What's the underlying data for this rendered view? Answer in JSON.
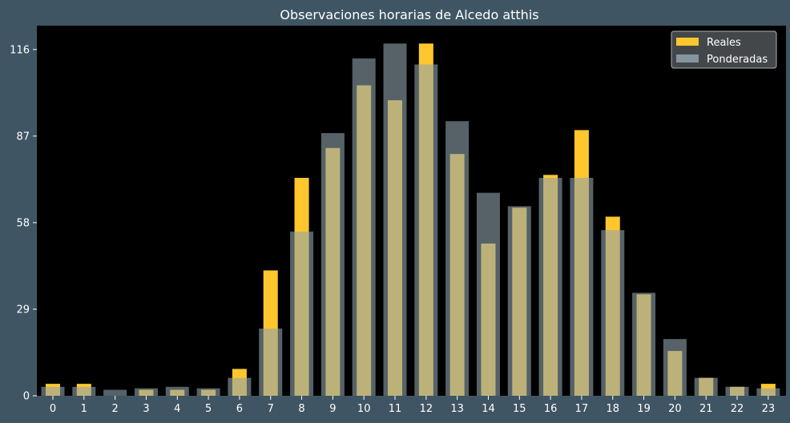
{
  "chart_data": {
    "type": "bar",
    "title": "Observaciones horarias de Alcedo atthis",
    "xlabel": "",
    "ylabel": "",
    "categories": [
      "0",
      "1",
      "2",
      "3",
      "4",
      "5",
      "6",
      "7",
      "8",
      "9",
      "10",
      "11",
      "12",
      "13",
      "14",
      "15",
      "16",
      "17",
      "18",
      "19",
      "20",
      "21",
      "22",
      "23"
    ],
    "yticks": [
      0,
      29,
      58,
      87,
      116
    ],
    "ylim": [
      0,
      124
    ],
    "grid": false,
    "legend_position": "top-right",
    "series": [
      {
        "name": "Reales",
        "color": "#ffc72c",
        "values": [
          4,
          4,
          0,
          2,
          2,
          2,
          9,
          42,
          73,
          83,
          104,
          99,
          118,
          81,
          51,
          63,
          74,
          89,
          60,
          34,
          15,
          6,
          3,
          4
        ]
      },
      {
        "name": "Ponderadas",
        "color": "#8fa3ad",
        "values": [
          3,
          3,
          2,
          2.5,
          3,
          2.5,
          6,
          22.5,
          55,
          88,
          113,
          118,
          111,
          92,
          68,
          63.5,
          73,
          73,
          55.5,
          34.5,
          19,
          6,
          3,
          2.5
        ]
      }
    ],
    "background": "#3f5563",
    "plot_background": "#000000"
  }
}
